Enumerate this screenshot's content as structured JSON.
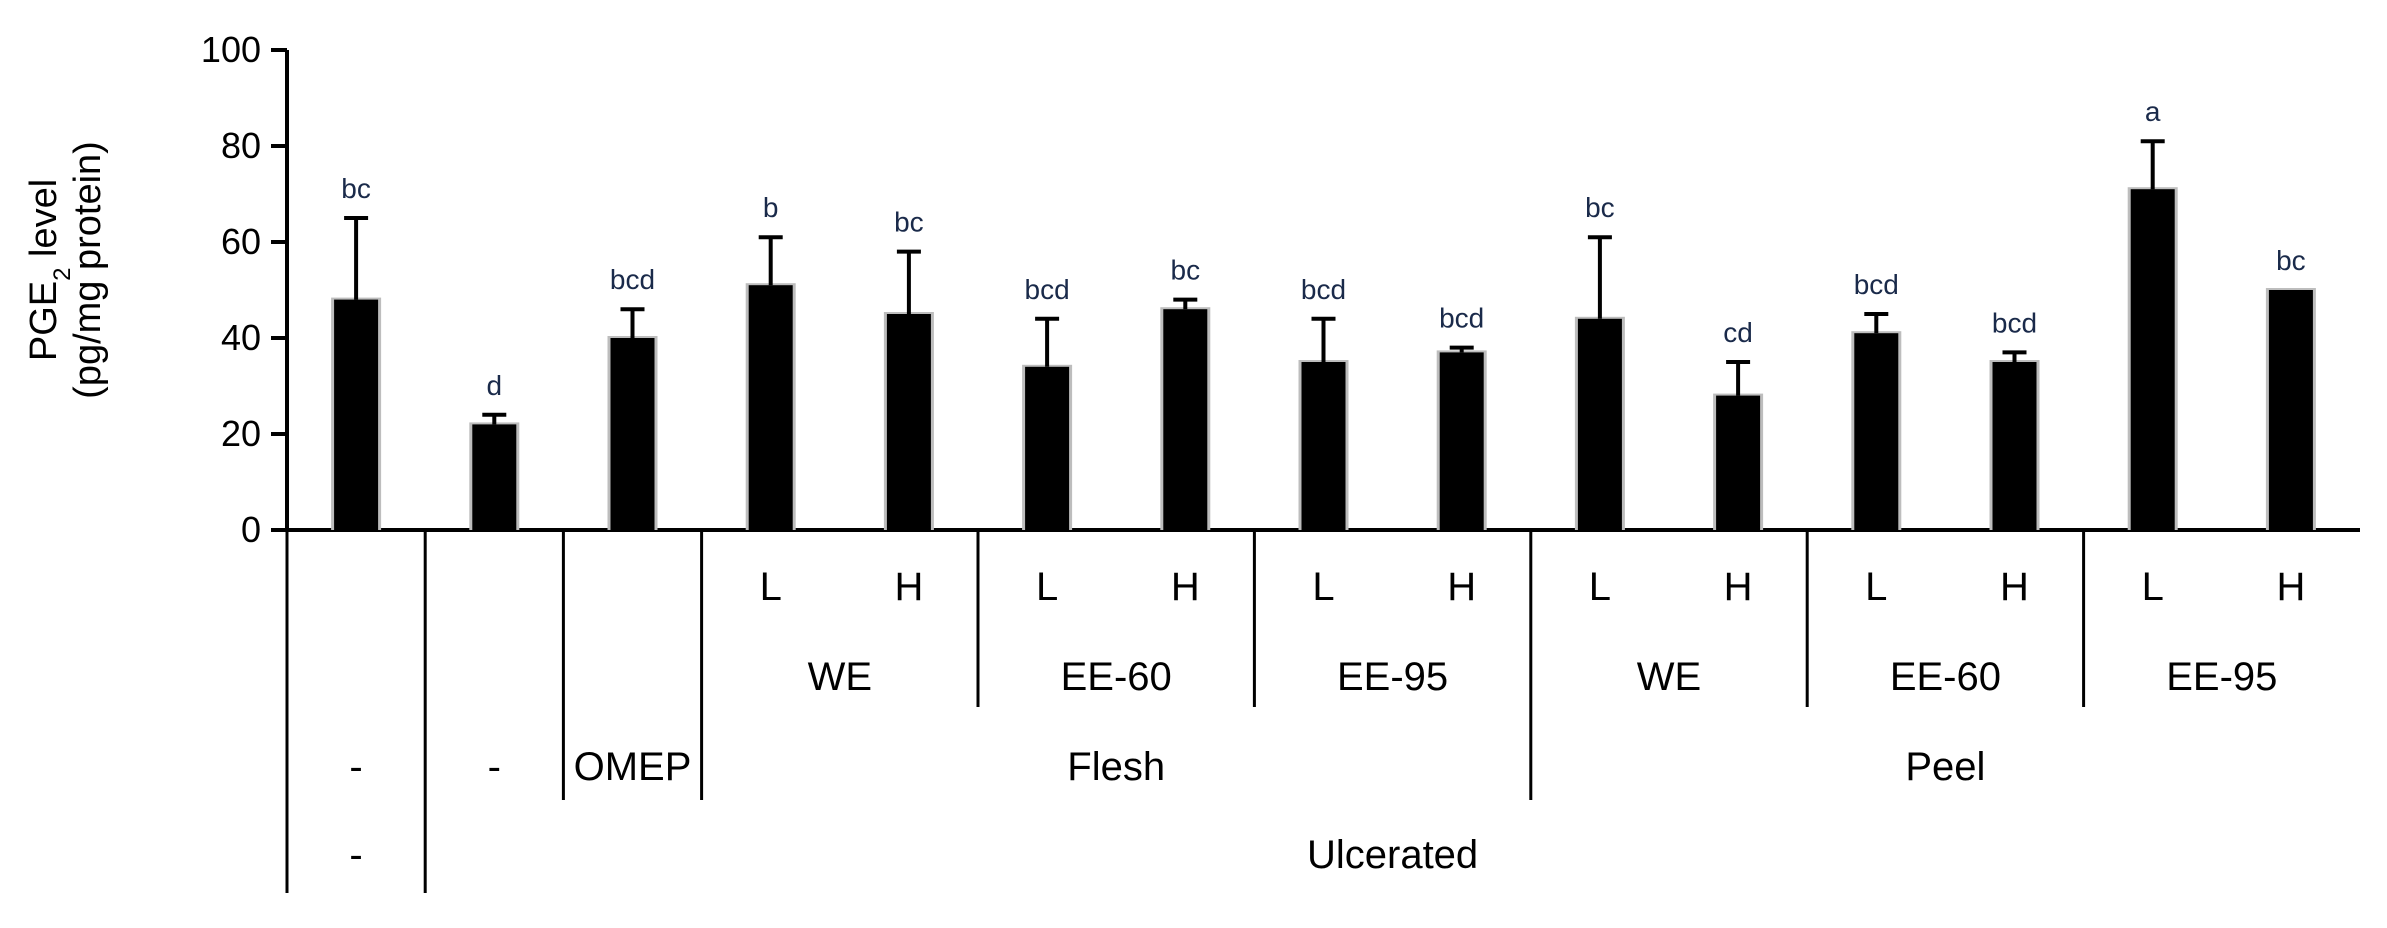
{
  "chart_data": {
    "type": "bar",
    "ylabel_line1": "PGE",
    "ylabel_sub": "2",
    "ylabel_line1_rest": " level",
    "ylabel_line2": "(pg/mg protein)",
    "ylim": [
      0,
      100
    ],
    "yticks": [
      "0",
      "20",
      "40",
      "60",
      "80",
      "100"
    ],
    "categories": [
      "-|-",
      "-",
      "OMEP",
      "Flesh WE L",
      "Flesh WE H",
      "Flesh EE-60 L",
      "Flesh EE-60 H",
      "Flesh EE-95 L",
      "Flesh EE-95 H",
      "Peel WE L",
      "Peel WE H",
      "Peel EE-60 L",
      "Peel EE-60 H",
      "Peel EE-95 L",
      "Peel EE-95 H"
    ],
    "values": [
      48,
      22,
      40,
      51,
      45,
      34,
      46,
      35,
      37,
      44,
      28,
      41,
      35,
      71,
      50
    ],
    "errors": [
      17,
      2,
      6,
      10,
      13,
      10,
      2,
      9,
      1,
      17,
      7,
      4,
      2,
      10,
      0
    ],
    "labels": [
      "bc",
      "d",
      "bcd",
      "b",
      "bc",
      "bcd",
      "bc",
      "bcd",
      "bcd",
      "bc",
      "cd",
      "bcd",
      "bcd",
      "a",
      "bc"
    ],
    "dose_labels": [
      "L",
      "H",
      "L",
      "H",
      "L",
      "H",
      "L",
      "H",
      "L",
      "H",
      "L",
      "H"
    ],
    "extract_labels": [
      "WE",
      "EE-60",
      "EE-95",
      "WE",
      "EE-60",
      "EE-95"
    ],
    "row3_labels": [
      "-",
      "-",
      "OMEP",
      "Flesh",
      "Peel"
    ],
    "row4_labels": [
      "-",
      "Ulcerated"
    ]
  }
}
